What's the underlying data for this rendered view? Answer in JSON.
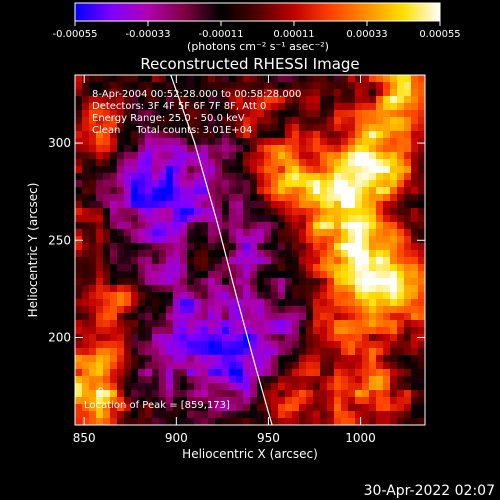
{
  "colorbar": {
    "tick_labels": [
      "-0.00055",
      "-0.00033",
      "-0.00011",
      "0.00011",
      "0.00033",
      "0.00055"
    ],
    "unit_label": "(photons cm⁻² s⁻¹ asec⁻²)",
    "range": [
      -0.00055,
      0.00055
    ],
    "colors": [
      "#0000ff",
      "#8000ff",
      "#b000b0",
      "#800040",
      "#000000",
      "#500000",
      "#c00000",
      "#ff4000",
      "#ff9000",
      "#ffe000",
      "#ffffff"
    ]
  },
  "chart_data": {
    "type": "heatmap",
    "title": "Reconstructed RHESSI Image",
    "xlabel": "Heliocentric X (arcsec)",
    "ylabel": "Heliocentric Y (arcsec)",
    "xlim": [
      845,
      1035
    ],
    "ylim": [
      155,
      335
    ],
    "xticks": [
      850,
      900,
      950,
      1000
    ],
    "yticks": [
      200,
      250,
      300
    ],
    "info_lines": [
      "8-Apr-2004 00:52:28.000 to 00:58:28.000",
      "Detectors: 3F 4F 5F 6F 7F 8F, Att 0",
      "Energy Range: 25.0 - 50.0 keV",
      "Clean     Total counts: 3.01E+04"
    ],
    "peak_label": "Location of Peak = [859,173]",
    "peak": [
      859,
      173
    ],
    "limb_line": [
      [
        897,
        335
      ],
      [
        910,
        300
      ],
      [
        922,
        260
      ],
      [
        933,
        220
      ],
      [
        943,
        185
      ],
      [
        952,
        155
      ]
    ],
    "hotspots": [
      {
        "x": 857,
        "y": 172,
        "r": 16,
        "v": 1.0
      },
      {
        "x": 862,
        "y": 300,
        "r": 14,
        "v": 0.65
      },
      {
        "x": 855,
        "y": 258,
        "r": 10,
        "v": 0.45
      },
      {
        "x": 870,
        "y": 218,
        "r": 12,
        "v": 0.5
      },
      {
        "x": 918,
        "y": 243,
        "r": 11,
        "v": 0.55
      },
      {
        "x": 958,
        "y": 285,
        "r": 14,
        "v": 0.55
      },
      {
        "x": 988,
        "y": 268,
        "r": 18,
        "v": 0.9
      },
      {
        "x": 1008,
        "y": 292,
        "r": 16,
        "v": 0.8
      },
      {
        "x": 1025,
        "y": 325,
        "r": 12,
        "v": 0.8
      },
      {
        "x": 1000,
        "y": 237,
        "r": 14,
        "v": 0.75
      },
      {
        "x": 1022,
        "y": 222,
        "r": 14,
        "v": 0.7
      },
      {
        "x": 990,
        "y": 205,
        "r": 12,
        "v": 0.5
      },
      {
        "x": 1005,
        "y": 170,
        "r": 14,
        "v": 0.6
      },
      {
        "x": 965,
        "y": 170,
        "r": 12,
        "v": 0.5
      },
      {
        "x": 940,
        "y": 318,
        "r": 10,
        "v": 0.45
      }
    ],
    "coldspots": [
      {
        "x": 905,
        "y": 265,
        "r": 26,
        "v": -0.6
      },
      {
        "x": 912,
        "y": 205,
        "r": 22,
        "v": -0.55
      },
      {
        "x": 875,
        "y": 285,
        "r": 18,
        "v": -0.5
      },
      {
        "x": 930,
        "y": 180,
        "r": 14,
        "v": -0.55
      },
      {
        "x": 955,
        "y": 205,
        "r": 14,
        "v": -0.45
      },
      {
        "x": 880,
        "y": 175,
        "r": 12,
        "v": -0.4
      },
      {
        "x": 940,
        "y": 245,
        "r": 12,
        "v": -0.4
      }
    ]
  },
  "footer": {
    "timestamp": "30-Apr-2022 02:07"
  }
}
